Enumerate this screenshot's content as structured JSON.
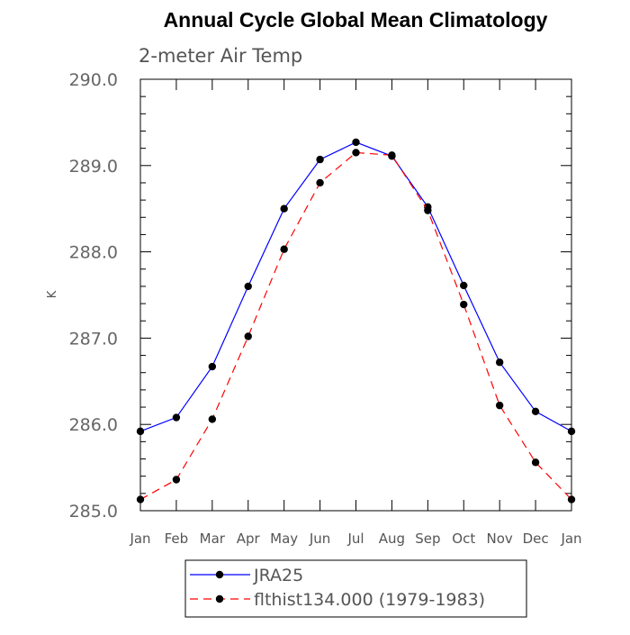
{
  "chart_data": {
    "type": "line",
    "title": "Annual Cycle Global Mean Climatology",
    "subtitle": "2-meter Air Temp",
    "xlabel": "",
    "ylabel": "K",
    "categories": [
      "Jan",
      "Feb",
      "Mar",
      "Apr",
      "May",
      "Jun",
      "Jul",
      "Aug",
      "Sep",
      "Oct",
      "Nov",
      "Dec",
      "Jan"
    ],
    "ylim": [
      285.0,
      290.0
    ],
    "yticks": [
      "285.0",
      "286.0",
      "287.0",
      "288.0",
      "289.0",
      "290.0"
    ],
    "grid": false,
    "legend_position": "bottom",
    "series": [
      {
        "name": "JRA25",
        "color": "#0000ff",
        "dash": "solid",
        "marker": "circle",
        "values": [
          285.92,
          286.08,
          286.67,
          287.6,
          288.5,
          289.07,
          289.27,
          289.11,
          288.52,
          287.61,
          286.72,
          286.15,
          285.92
        ]
      },
      {
        "name": "flthist134.000 (1979-1983)",
        "color": "#ff0000",
        "dash": "dashed",
        "marker": "circle",
        "values": [
          285.13,
          285.36,
          286.06,
          287.02,
          288.03,
          288.8,
          289.15,
          289.12,
          288.48,
          287.39,
          286.22,
          285.56,
          285.13
        ]
      }
    ]
  }
}
